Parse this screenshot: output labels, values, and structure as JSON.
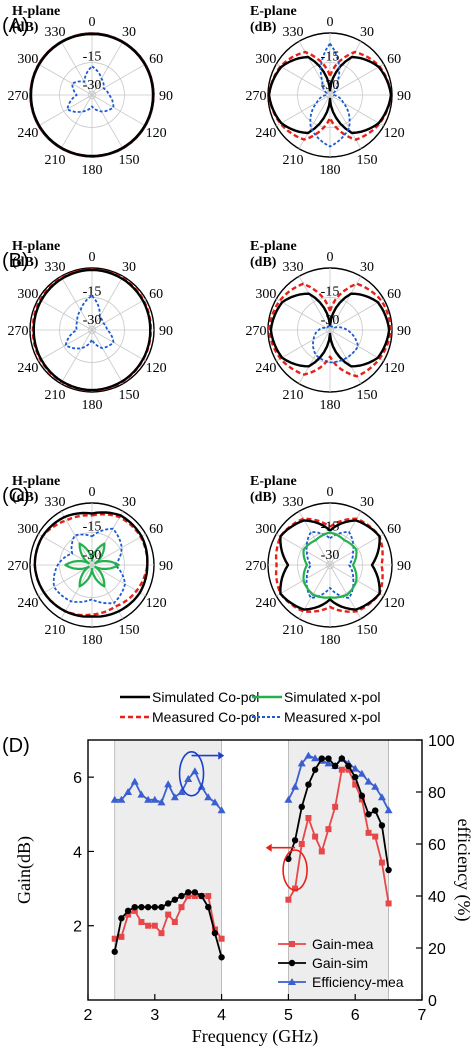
{
  "chart_data": [
    {
      "type": "polar",
      "panel_label": "(A)",
      "title_line1": "H-plane",
      "title_line2": "(dB)",
      "angle_ticks": [
        "0",
        "30",
        "60",
        "90",
        "120",
        "150",
        "180",
        "210",
        "240",
        "270",
        "300",
        "330"
      ],
      "radial_ticks": [
        "-15",
        "-30"
      ],
      "series": [
        {
          "key": "measured_co",
          "color": "#e8201a",
          "dash": "5,3",
          "width": 2.4,
          "r": [
            0.1,
            0.1,
            0.1,
            0.1,
            0.1,
            0.1,
            0.1,
            0.1,
            0.1,
            0.1,
            0.1,
            0.1
          ]
        },
        {
          "key": "simulated_co",
          "color": "#000000",
          "dash": "",
          "width": 2.4,
          "r": [
            0,
            0,
            0,
            0,
            0,
            0,
            0,
            0,
            0,
            0,
            0,
            0
          ]
        },
        {
          "key": "measured_x",
          "color": "#1a5bd4",
          "dash": "3,2",
          "width": 1.8,
          "r": [
            -17,
            -22,
            -25,
            -23,
            -19,
            -22,
            -26,
            -22,
            -17,
            -24,
            -20,
            -24
          ]
        }
      ]
    },
    {
      "type": "polar",
      "panel_label": "",
      "title_line1": "E-plane",
      "title_line2": "(dB)",
      "angle_ticks": [
        "0",
        "30",
        "60",
        "90",
        "120",
        "150",
        "180",
        "210",
        "240",
        "270",
        "300",
        "330"
      ],
      "radial_ticks": [
        "-15",
        "-30"
      ],
      "series": [
        {
          "key": "measured_co",
          "color": "#e8201a",
          "dash": "5,3",
          "width": 2.4,
          "r": [
            -22,
            -6,
            -2,
            0,
            -2,
            -5,
            -20,
            -5,
            -2,
            0,
            -2,
            -6
          ]
        },
        {
          "key": "simulated_co",
          "color": "#000000",
          "dash": "",
          "width": 2.4,
          "r": [
            -30,
            -9,
            -2.5,
            0,
            -2.5,
            -9,
            -30,
            -9,
            -2.5,
            0,
            -2.5,
            -9
          ]
        },
        {
          "key": "measured_x",
          "color": "#1a5bd4",
          "dash": "3,2",
          "width": 1.8,
          "r": [
            -5,
            -24,
            -30,
            -30,
            -24,
            -12,
            -5,
            -12,
            -24,
            -30,
            -30,
            -24
          ]
        }
      ]
    },
    {
      "type": "polar",
      "panel_label": "(B)",
      "title_line1": "H-plane",
      "title_line2": "(dB)",
      "angle_ticks": [
        "0",
        "30",
        "60",
        "90",
        "120",
        "150",
        "180",
        "210",
        "240",
        "270",
        "300",
        "330"
      ],
      "radial_ticks": [
        "-15",
        "-30"
      ],
      "series": [
        {
          "key": "measured_co",
          "color": "#e8201a",
          "dash": "5,3",
          "width": 2.4,
          "r": [
            -0.3,
            -0.4,
            -0.8,
            -1.2,
            -1,
            -0.6,
            -0.3,
            -0.5,
            -0.8,
            -1,
            -0.6,
            -0.3
          ]
        },
        {
          "key": "simulated_co",
          "color": "#000000",
          "dash": "",
          "width": 2.4,
          "r": [
            -0.5,
            -0.8,
            -1.2,
            -1.5,
            -1.2,
            -0.8,
            -0.5,
            -0.8,
            -1.2,
            -1.5,
            -1.2,
            -0.8
          ]
        },
        {
          "key": "measured_x",
          "color": "#1a5bd4",
          "dash": "3,2",
          "width": 1.8,
          "r": [
            -14,
            -24,
            -25,
            -24,
            -19,
            -21,
            -27,
            -21,
            -16,
            -24,
            -23,
            -20
          ]
        }
      ]
    },
    {
      "type": "polar",
      "panel_label": "",
      "title_line1": "E-plane",
      "title_line2": "(dB)",
      "angle_ticks": [
        "0",
        "30",
        "60",
        "90",
        "120",
        "150",
        "180",
        "210",
        "240",
        "270",
        "300",
        "330"
      ],
      "radial_ticks": [
        "-15",
        "-30"
      ],
      "series": [
        {
          "key": "measured_co",
          "color": "#e8201a",
          "dash": "5,3",
          "width": 2.4,
          "r": [
            -22,
            -4,
            -1,
            0,
            -2,
            -4,
            -18,
            -5,
            -2,
            0,
            -1.5,
            -4
          ]
        },
        {
          "key": "simulated_co",
          "color": "#000000",
          "dash": "",
          "width": 2.4,
          "r": [
            -30,
            -10,
            -3,
            -1,
            -3,
            -10,
            -30,
            -10,
            -3,
            -1,
            -3,
            -10
          ]
        },
        {
          "key": "measured_x",
          "color": "#1a5bd4",
          "dash": "3,2",
          "width": 1.8,
          "r": [
            -30,
            -30,
            -30,
            -23,
            -15,
            -15,
            -15,
            -17,
            -22,
            -26,
            -30,
            -30
          ]
        }
      ]
    },
    {
      "type": "polar",
      "panel_label": "(C)",
      "title_line1": "H-plane",
      "title_line2": "(dB)",
      "angle_ticks": [
        "0",
        "30",
        "60",
        "90",
        "120",
        "150",
        "180",
        "210",
        "240",
        "270",
        "300",
        "330"
      ],
      "radial_ticks": [
        "-15",
        "-30"
      ],
      "series": [
        {
          "key": "measured_co",
          "color": "#e8201a",
          "dash": "5,3",
          "width": 2.4,
          "r": [
            -6,
            -3,
            -2.5,
            -3,
            -5,
            -7,
            -6,
            -4,
            -3,
            -2,
            -2,
            -5
          ]
        },
        {
          "key": "simulated_co",
          "color": "#000000",
          "dash": "",
          "width": 2.4,
          "r": [
            -5,
            -2,
            -2,
            -3,
            -3,
            -4,
            -5,
            -4,
            -3,
            -2,
            -2,
            -3
          ]
        },
        {
          "key": "measured_x",
          "color": "#1a5bd4",
          "dash": "3,2",
          "width": 1.8,
          "r": [
            -17,
            -10,
            -14,
            -20,
            -12,
            -9,
            -14,
            -10,
            -9,
            -14,
            -20,
            -14
          ]
        },
        {
          "key": "simulated_x",
          "color": "#22b14c",
          "dash": "",
          "width": 2.2,
          "r": [
            -30,
            -19,
            -30,
            -18,
            -30,
            -19,
            -30,
            -19,
            -30,
            -18,
            -30,
            -19
          ]
        }
      ]
    },
    {
      "type": "polar",
      "panel_label": "",
      "title_line1": "E-plane",
      "title_line2": "(dB)",
      "angle_ticks": [
        "0",
        "30",
        "60",
        "90",
        "120",
        "150",
        "180",
        "210",
        "240",
        "270",
        "300",
        "330"
      ],
      "radial_ticks": [
        "-15",
        "-30"
      ],
      "series": [
        {
          "key": "measured_co",
          "color": "#e8201a",
          "dash": "5,3",
          "width": 2.4,
          "r": [
            -12,
            -4,
            -2,
            -5,
            -2,
            -4,
            -10,
            -4,
            -2,
            -4,
            -2,
            -4
          ]
        },
        {
          "key": "simulated_co",
          "color": "#000000",
          "dash": "",
          "width": 2.4,
          "r": [
            -14,
            -5,
            -2,
            -10,
            -2,
            -5,
            -14,
            -5,
            -2,
            -10,
            -2,
            -5
          ]
        },
        {
          "key": "measured_x",
          "color": "#1a5bd4",
          "dash": "3,2",
          "width": 1.8,
          "r": [
            -18,
            -12,
            -18,
            -22,
            -18,
            -12,
            -20,
            -12,
            -18,
            -22,
            -18,
            -12
          ]
        },
        {
          "key": "simulated_x",
          "color": "#22b14c",
          "dash": "",
          "width": 2.2,
          "r": [
            -15,
            -17,
            -16,
            -20,
            -16,
            -14,
            -15,
            -14,
            -16,
            -20,
            -16,
            -17
          ]
        }
      ]
    },
    {
      "type": "line",
      "panel_label": "(D)",
      "xlabel": "Frequency (GHz)",
      "ylabel": "Gain(dB)",
      "ylabel_right": "efficiency (%)",
      "xlim": [
        2,
        7
      ],
      "ylim": [
        0,
        7
      ],
      "ylim_right": [
        0,
        100
      ],
      "xticks": [
        "2",
        "3",
        "4",
        "5",
        "6",
        "7"
      ],
      "yticks": [
        "2",
        "4",
        "6"
      ],
      "yticks_right": [
        "0",
        "20",
        "40",
        "60",
        "80",
        "100"
      ],
      "shaded_ranges": [
        [
          2.4,
          4.0
        ],
        [
          5.0,
          6.5
        ]
      ],
      "series": [
        {
          "name": "Gain-mea",
          "axis": "left",
          "color": "#e8474a",
          "marker": "square",
          "segments": [
            {
              "x": [
                2.4,
                2.5,
                2.6,
                2.7,
                2.8,
                2.9,
                3.0,
                3.1,
                3.2,
                3.3,
                3.4,
                3.5,
                3.6,
                3.7,
                3.8,
                3.9,
                4.0
              ],
              "y": [
                1.65,
                1.7,
                2.3,
                2.4,
                2.1,
                2.0,
                2.0,
                1.8,
                2.3,
                2.1,
                2.5,
                2.8,
                2.8,
                2.8,
                2.8,
                1.9,
                1.65
              ]
            },
            {
              "x": [
                5.0,
                5.1,
                5.2,
                5.3,
                5.4,
                5.5,
                5.6,
                5.7,
                5.8,
                5.9,
                6.0,
                6.1,
                6.2,
                6.3,
                6.4,
                6.5
              ],
              "y": [
                2.7,
                3.0,
                4.2,
                4.9,
                4.4,
                4.0,
                4.6,
                5.2,
                6.2,
                6.2,
                5.8,
                5.4,
                4.5,
                4.4,
                3.7,
                2.6
              ]
            }
          ]
        },
        {
          "name": "Gain-sim",
          "axis": "left",
          "color": "#000000",
          "marker": "circle",
          "segments": [
            {
              "x": [
                2.4,
                2.5,
                2.6,
                2.7,
                2.8,
                2.9,
                3.0,
                3.1,
                3.2,
                3.3,
                3.4,
                3.5,
                3.6,
                3.7,
                3.8,
                3.9,
                4.0
              ],
              "y": [
                1.3,
                2.2,
                2.4,
                2.5,
                2.5,
                2.5,
                2.5,
                2.5,
                2.6,
                2.7,
                2.8,
                2.9,
                2.9,
                2.8,
                2.5,
                1.8,
                1.15
              ]
            },
            {
              "x": [
                5.0,
                5.1,
                5.2,
                5.3,
                5.4,
                5.5,
                5.6,
                5.7,
                5.8,
                5.9,
                6.0,
                6.1,
                6.2,
                6.3,
                6.4,
                6.5
              ],
              "y": [
                3.8,
                4.3,
                5.2,
                5.8,
                6.2,
                6.5,
                6.5,
                6.3,
                6.5,
                6.3,
                6.0,
                5.5,
                5.0,
                5.1,
                4.7,
                3.5
              ]
            }
          ]
        },
        {
          "name": "Efficiency-mea",
          "axis": "right",
          "color": "#3a5fd0",
          "marker": "triangle",
          "segments": [
            {
              "x": [
                2.4,
                2.5,
                2.6,
                2.7,
                2.8,
                2.9,
                3.0,
                3.1,
                3.2,
                3.3,
                3.4,
                3.5,
                3.6,
                3.7,
                3.8,
                3.9,
                4.0
              ],
              "y": [
                77,
                77,
                80,
                84,
                79,
                77,
                77,
                76,
                83,
                78,
                80,
                85,
                88,
                82,
                78,
                76,
                73
              ]
            },
            {
              "x": [
                5.0,
                5.1,
                5.2,
                5.3,
                5.4,
                5.5,
                5.6,
                5.7,
                5.8,
                5.9,
                6.0,
                6.1,
                6.2,
                6.3,
                6.4,
                6.5
              ],
              "y": [
                77,
                82,
                91,
                94,
                93,
                92,
                91,
                90,
                93,
                91,
                89,
                87,
                84,
                82,
                78,
                73
              ]
            }
          ]
        }
      ]
    }
  ],
  "legend_top": {
    "simulated_co": "Simulated Co-pol",
    "simulated_x": "Simulated x-pol",
    "measured_co": "Measured Co-pol",
    "measured_x": "Measured x-pol"
  }
}
